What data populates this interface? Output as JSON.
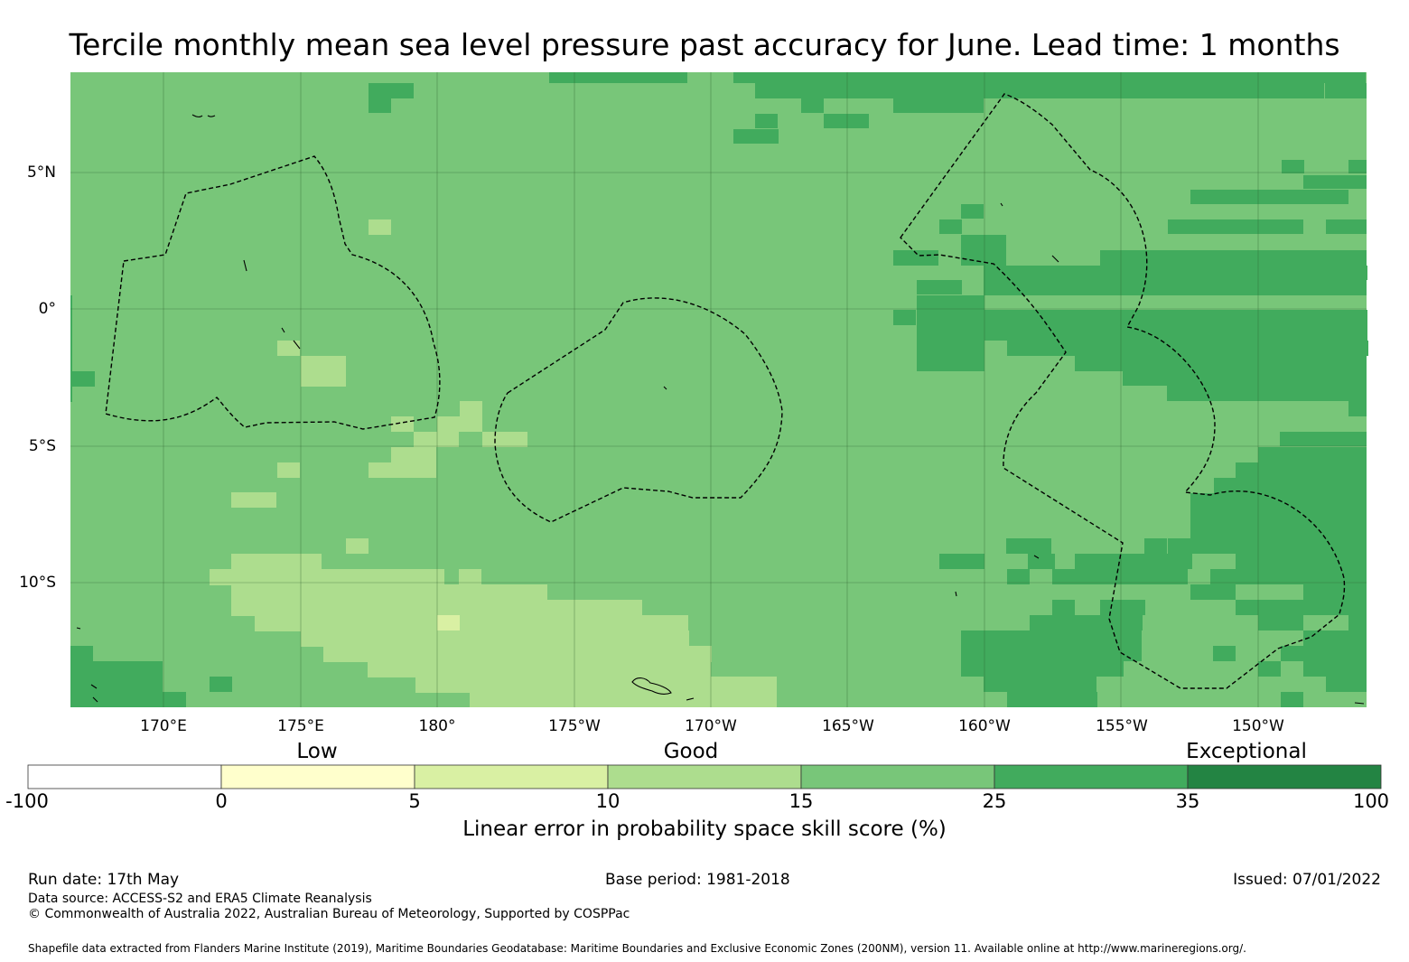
{
  "title": "Tercile monthly mean sea level pressure past accuracy for June. Lead time: 1 months",
  "map": {
    "lat_labels": [
      "5°N",
      "0°",
      "5°S",
      "10°S"
    ],
    "lon_labels": [
      "170°E",
      "175°E",
      "180°",
      "175°W",
      "170°W",
      "165°W",
      "160°W",
      "155°W",
      "150°W"
    ],
    "colors": {
      "c0_5": "#ffffcc",
      "c5_10": "#d9f0a3",
      "c10_15": "#addd8e",
      "c15_25": "#78c679",
      "c25_35": "#41ab5d",
      "c35_100": "#238443",
      "land_outline": "#000000",
      "eez_boundary": "#000000"
    }
  },
  "colorbar": {
    "categories": [
      "Low",
      "Good",
      "Exceptional"
    ],
    "ticks": [
      "-100",
      "0",
      "5",
      "10",
      "15",
      "25",
      "35",
      "100"
    ],
    "colors": [
      "#ffffff",
      "#ffffcc",
      "#d9f0a3",
      "#addd8e",
      "#78c679",
      "#41ab5d",
      "#238443"
    ],
    "label": "Linear error in probability space skill score (%)"
  },
  "footer": {
    "run_date": "Run date: 17th May",
    "base_period": "Base period: 1981-2018",
    "issued": "Issued: 07/01/2022",
    "data_source": "Data source: ACCESS-S2 and ERA5 Climate Reanalysis",
    "copyright": "© Commonwealth of Australia 2022, Australian Bureau of Meteorology, Supported by COSPPac",
    "shapefile": "Shapefile data extracted from Flanders Marine Institute (2019), Maritime Boundaries Geodatabase: Maritime Boundaries and Exclusive Economic Zones (200NM), version 11. Available online at http://www.marineregions.org/."
  }
}
